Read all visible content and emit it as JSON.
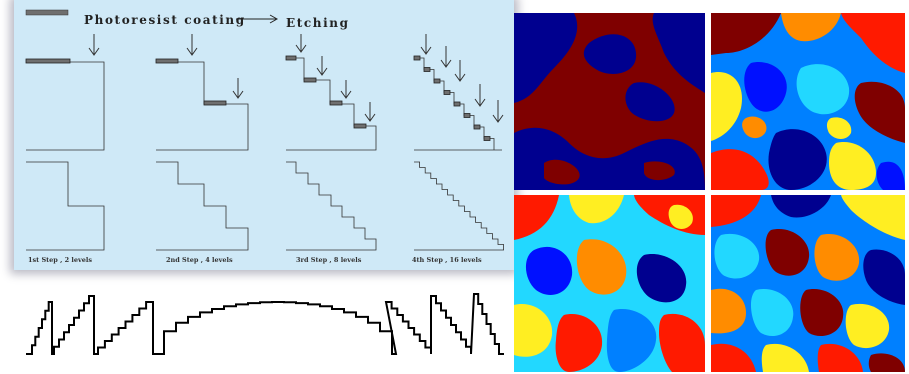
{
  "process_panel": {
    "header_left": "Photoresist coating",
    "header_right": "Etching",
    "captions": [
      "1st Step , 2 levels",
      "2nd Step , 4 levels",
      "3rd Step , 8 levels",
      "4th Step , 16 levels"
    ],
    "background_color": "#cfe9f7"
  },
  "colors": {
    "dark_red": "#7f0000",
    "dark_blue": "#00008f",
    "red": "#ff1a00",
    "orange": "#ff8c00",
    "yellow": "#ffee22",
    "cyan": "#22d8ff",
    "light_blue": "#0080ff",
    "blue": "#0010ff"
  }
}
